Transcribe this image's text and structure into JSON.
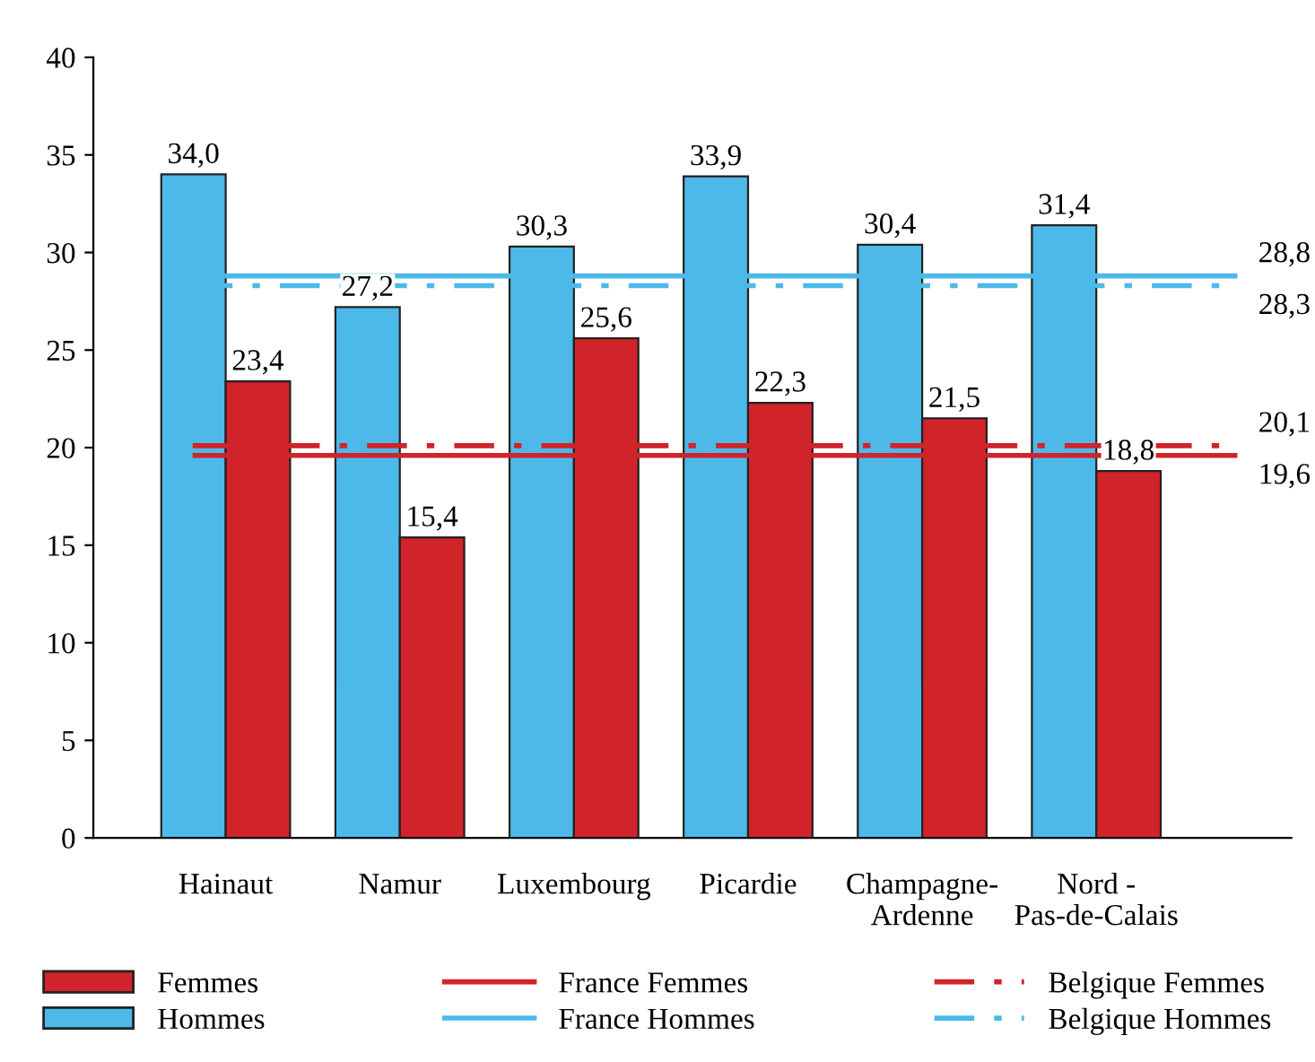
{
  "chart_data": {
    "type": "bar",
    "categories": [
      "Hainaut",
      "Namur",
      "Luxembourg",
      "Picardie",
      "Champagne-\nArdenne",
      "Nord -\nPas-de-Calais"
    ],
    "series": [
      {
        "name": "Hommes",
        "color": "#4cb9e9",
        "values": [
          34.0,
          27.2,
          30.3,
          33.9,
          30.4,
          31.4
        ],
        "value_labels": [
          "34,0",
          "27,2",
          "30,3",
          "33,9",
          "30,4",
          "31,4"
        ]
      },
      {
        "name": "Femmes",
        "color": "#d1232a",
        "values": [
          23.4,
          15.4,
          25.6,
          22.3,
          21.5,
          18.8
        ],
        "value_labels": [
          "23,4",
          "15,4",
          "25,6",
          "22,3",
          "21,5",
          "18,8"
        ]
      }
    ],
    "ref_lines": [
      {
        "axis": "y",
        "value": 19.6,
        "label": "France Femmes",
        "color": "#d1232a",
        "line_style": "solid"
      },
      {
        "axis": "y",
        "value": 28.8,
        "label": "France Hommes",
        "color": "#4cb9e9",
        "line_style": "solid"
      },
      {
        "axis": "y",
        "value": 20.1,
        "label": "Belgique Femmes",
        "color": "#d1232a",
        "line_style": "dashdot"
      },
      {
        "axis": "y",
        "value": 28.3,
        "label": "Belgique Hommes",
        "color": "#4cb9e9",
        "line_style": "dashdot"
      }
    ],
    "annotations": [
      "19,6",
      "28,8",
      "20,1",
      "28,3"
    ],
    "ylim": [
      0,
      40
    ],
    "yticks": [
      0,
      5,
      10,
      15,
      20,
      25,
      30,
      35,
      40
    ],
    "grid": false,
    "legend": "bottom"
  }
}
